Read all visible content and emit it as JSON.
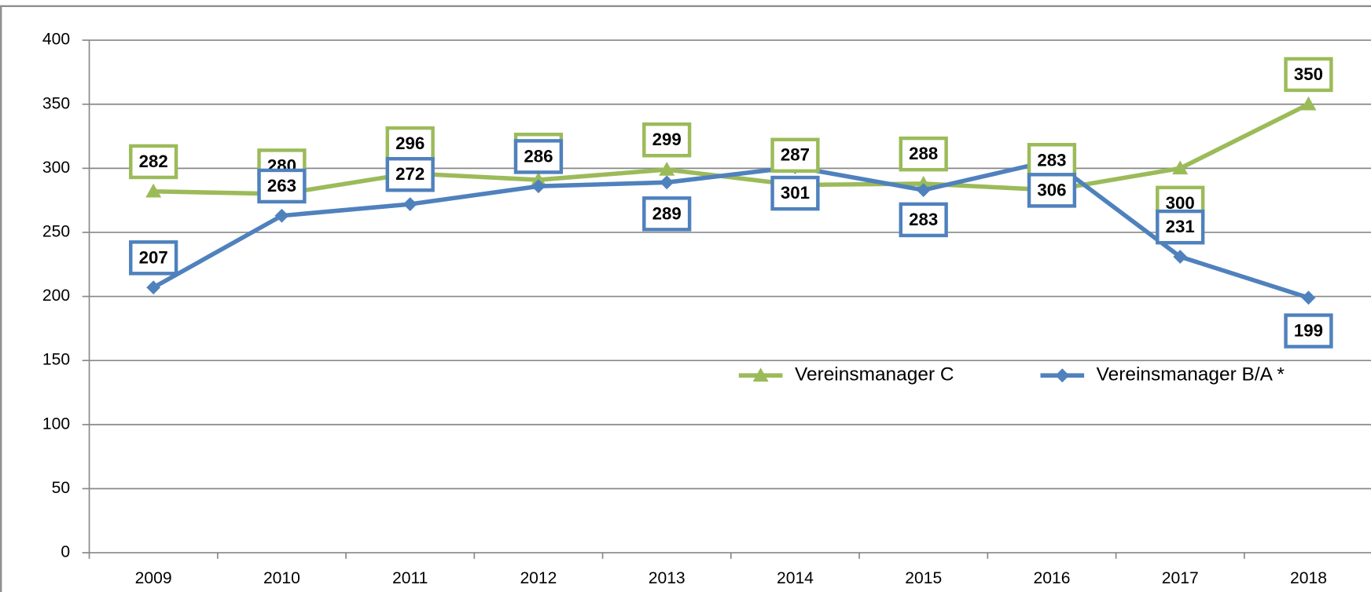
{
  "chart_data": {
    "type": "line",
    "categories": [
      "2009",
      "2010",
      "2011",
      "2012",
      "2013",
      "2014",
      "2015",
      "2016",
      "2017",
      "2018"
    ],
    "series": [
      {
        "name": "Vereinsmanager C",
        "color": "#9bbb59",
        "marker": "triangle",
        "values": [
          282,
          280,
          296,
          291,
          299,
          287,
          288,
          283,
          300,
          350
        ]
      },
      {
        "name": "Vereinsmanager B/A *",
        "color": "#4f81bd",
        "marker": "diamond",
        "values": [
          207,
          263,
          272,
          286,
          289,
          301,
          283,
          306,
          231,
          199
        ]
      }
    ],
    "ylim": [
      0,
      400
    ],
    "yticks": [
      0,
      50,
      100,
      150,
      200,
      250,
      300,
      350,
      400
    ],
    "grid": true,
    "legend": "right"
  }
}
